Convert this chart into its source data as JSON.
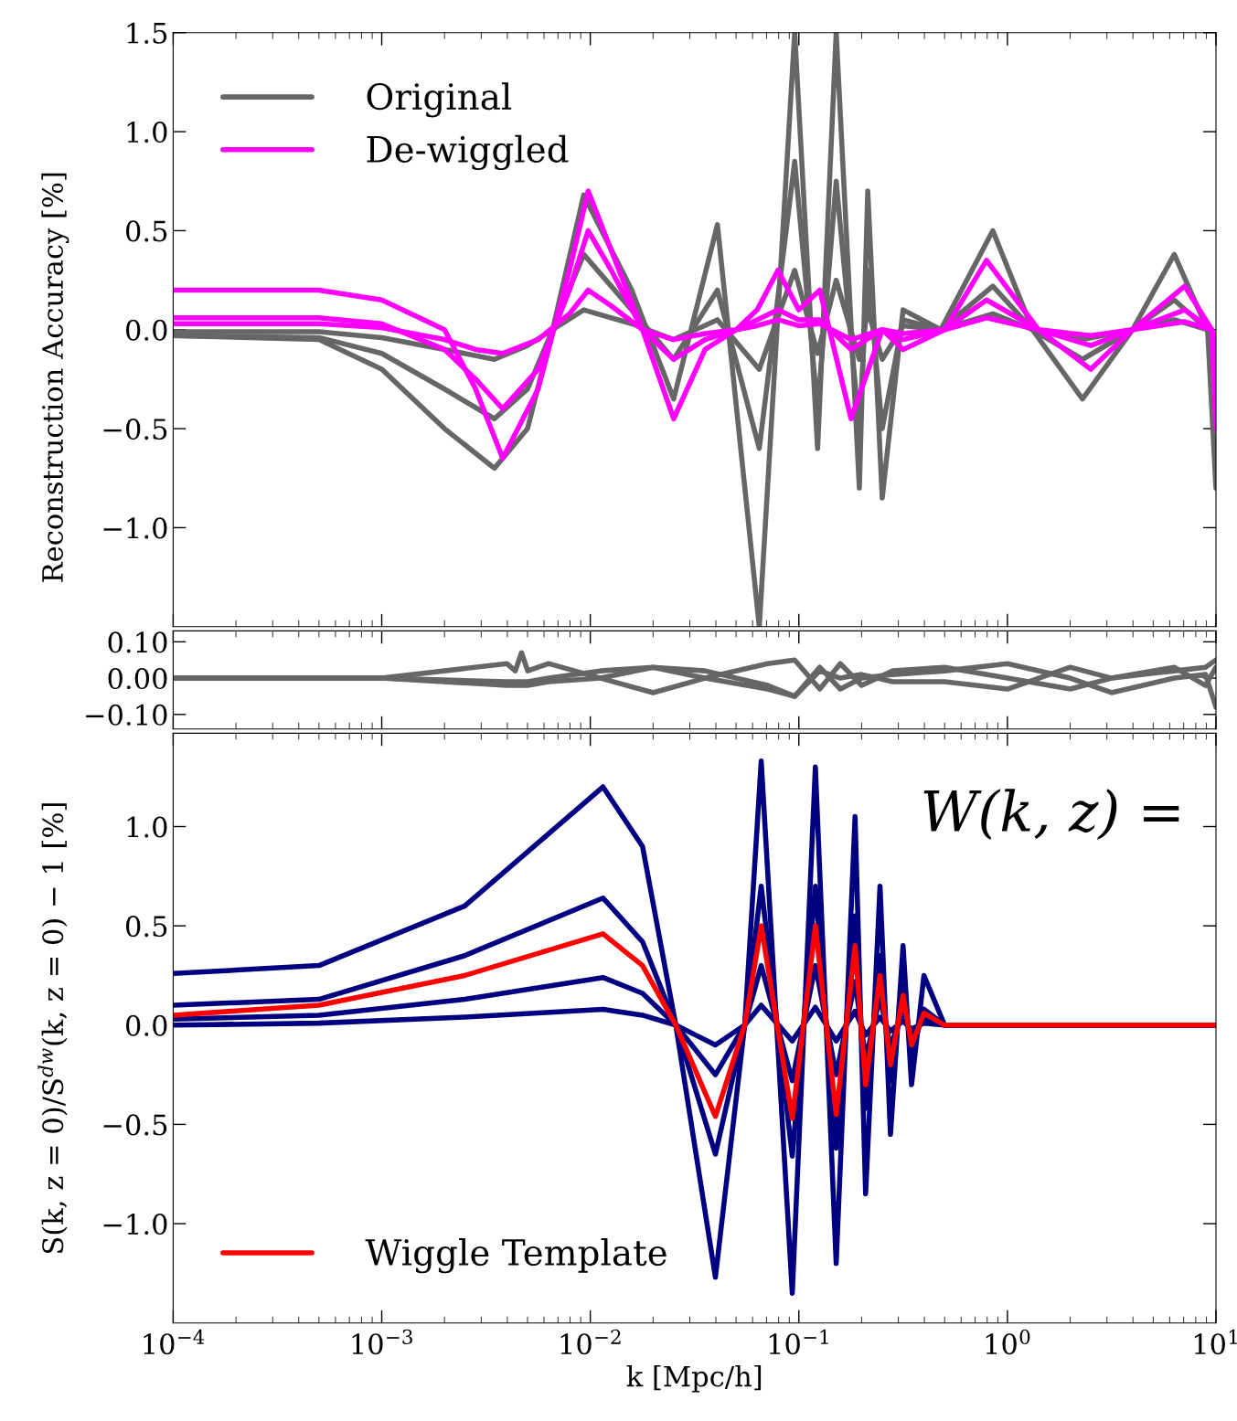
{
  "chart_data": [
    {
      "type": "line",
      "ylabel": "Reconstruction Accuracy [%]",
      "log": "x",
      "xlim": [
        0.0001,
        10
      ],
      "xticks": [
        {
          "value": 0.0001,
          "label": null
        },
        {
          "value": 0.001,
          "label": null
        },
        {
          "value": 0.01,
          "label": null
        },
        {
          "value": 0.1,
          "label": null
        },
        {
          "value": 1,
          "label": null
        },
        {
          "value": 10,
          "label": null
        }
      ],
      "ylim": [
        -1.5,
        1.5
      ],
      "yticks": [
        {
          "value": -1.0,
          "label": "−1.0"
        },
        {
          "value": -0.5,
          "label": "−0.5"
        },
        {
          "value": 0.0,
          "label": "0.0"
        },
        {
          "value": 0.5,
          "label": "0.5"
        },
        {
          "value": 1.0,
          "label": "1.0"
        },
        {
          "value": 1.5,
          "label": "1.5"
        }
      ],
      "tick_labels": "y",
      "grid": false,
      "legend": "top left",
      "line_style": "solid",
      "marker": "none",
      "series": [
        {
          "name": "Original",
          "color": "#666666",
          "x": [
            0.0001,
            0.0005,
            0.001,
            0.002,
            0.00347,
            0.005,
            0.0066,
            0.0093,
            0.0158,
            0.0251,
            0.0407,
            0.0646,
            0.0955,
            0.123,
            0.151,
            0.195,
            0.214,
            0.251,
            0.316,
            0.479,
            0.851,
            1.32,
            2.29,
            3.98,
            6.31,
            9.12,
            10
          ],
          "values": [
            -0.03,
            -0.05,
            -0.2,
            -0.5,
            -0.7,
            -0.5,
            0,
            0.68,
            0.2,
            -0.35,
            0.53,
            -1.5,
            1.5,
            -0.6,
            1.5,
            -0.8,
            0.7,
            -0.85,
            0.1,
            0,
            0.5,
            0,
            -0.35,
            0,
            0.38,
            0,
            -0.8
          ]
        },
        {
          "color": "#666666",
          "x": [
            0.0001,
            0.0005,
            0.001,
            0.002,
            0.00347,
            0.005,
            0.0066,
            0.0093,
            0.0158,
            0.0251,
            0.0407,
            0.0646,
            0.0955,
            0.123,
            0.151,
            0.195,
            0.214,
            0.251,
            0.316,
            0.479,
            0.851,
            1.32,
            2.29,
            3.98,
            6.31,
            9.12,
            10
          ],
          "values": [
            -0.03,
            -0.04,
            -0.12,
            -0.3,
            -0.45,
            -0.3,
            0,
            0.38,
            0.1,
            -0.15,
            0.2,
            -0.6,
            0.85,
            -0.4,
            0.75,
            -0.5,
            0.3,
            -0.5,
            0.05,
            0,
            0.22,
            0,
            -0.15,
            0,
            0.15,
            0,
            -0.3
          ]
        },
        {
          "color": "#666666",
          "x": [
            0.0001,
            0.0005,
            0.001,
            0.002,
            0.00347,
            0.005,
            0.0066,
            0.0093,
            0.0158,
            0.0251,
            0.0407,
            0.0646,
            0.0955,
            0.123,
            0.151,
            0.195,
            0.214,
            0.251,
            0.316,
            0.479,
            0.851,
            1.32,
            2.29,
            3.98,
            6.31,
            9.12,
            10
          ],
          "values": [
            -0.01,
            -0.01,
            -0.04,
            -0.1,
            -0.15,
            -0.08,
            0,
            0.1,
            0.03,
            -0.05,
            0.05,
            -0.2,
            0.3,
            -0.12,
            0.25,
            -0.15,
            0.1,
            -0.15,
            0.02,
            0,
            0.08,
            0,
            -0.05,
            0,
            0.05,
            0,
            -0.1
          ]
        },
        {
          "name": "De-wiggled",
          "color": "#ff00ff",
          "x": [
            0.0001,
            0.0005,
            0.001,
            0.002,
            0.00282,
            0.0038,
            0.00562,
            0.00794,
            0.00977,
            0.0126,
            0.0178,
            0.0251,
            0.0355,
            0.0501,
            0.0631,
            0.0794,
            0.1,
            0.126,
            0.178,
            0.251,
            0.316,
            0.501,
            0.794,
            1.41,
            2.51,
            3.98,
            7.08,
            9.55,
            10
          ],
          "values": [
            0.2,
            0.2,
            0.15,
            0,
            -0.3,
            -0.65,
            -0.3,
            0.3,
            0.7,
            0.4,
            0,
            -0.45,
            -0.1,
            0,
            0.1,
            0.3,
            0.1,
            0.2,
            -0.45,
            0,
            -0.1,
            0,
            0.35,
            0,
            -0.2,
            0,
            0.22,
            0,
            -0.5
          ]
        },
        {
          "color": "#ff00ff",
          "x": [
            0.0001,
            0.0005,
            0.001,
            0.002,
            0.00282,
            0.0038,
            0.00562,
            0.00794,
            0.00977,
            0.0126,
            0.0178,
            0.0251,
            0.0355,
            0.0501,
            0.0631,
            0.0794,
            0.1,
            0.126,
            0.178,
            0.251,
            0.316,
            0.501,
            0.794,
            1.41,
            2.51,
            3.98,
            7.08,
            9.55,
            10
          ],
          "values": [
            0.06,
            0.06,
            0.03,
            -0.1,
            -0.25,
            -0.4,
            -0.2,
            0.2,
            0.5,
            0.3,
            0,
            -0.15,
            -0.05,
            0,
            0.05,
            0.1,
            0.05,
            0.05,
            -0.1,
            0,
            -0.05,
            0,
            0.15,
            0,
            -0.08,
            0,
            0.1,
            0,
            -0.2
          ]
        },
        {
          "color": "#ff00ff",
          "x": [
            0.0001,
            0.0005,
            0.001,
            0.002,
            0.00282,
            0.0038,
            0.00562,
            0.00794,
            0.00977,
            0.0126,
            0.0178,
            0.0251,
            0.0355,
            0.0501,
            0.0631,
            0.0794,
            0.1,
            0.126,
            0.178,
            0.251,
            0.316,
            0.501,
            0.794,
            1.41,
            2.51,
            3.98,
            7.08,
            9.55,
            10
          ],
          "values": [
            0.03,
            0.03,
            0.01,
            -0.05,
            -0.1,
            -0.12,
            -0.05,
            0.08,
            0.2,
            0.12,
            0,
            -0.05,
            -0.02,
            0,
            0.02,
            0.05,
            0.02,
            0.03,
            -0.05,
            0,
            -0.02,
            0,
            0.06,
            0,
            -0.03,
            0,
            0.04,
            0,
            -0.08
          ]
        }
      ]
    },
    {
      "type": "line",
      "log": "x",
      "xlim": [
        0.0001,
        10
      ],
      "xticks": [
        {
          "value": 0.0001,
          "label": null
        },
        {
          "value": 0.001,
          "label": null
        },
        {
          "value": 0.01,
          "label": null
        },
        {
          "value": 0.1,
          "label": null
        },
        {
          "value": 1,
          "label": null
        },
        {
          "value": 10,
          "label": null
        }
      ],
      "ylim": [
        -0.14,
        0.13
      ],
      "yticks": [
        {
          "value": -0.1,
          "label": "−0.10"
        },
        {
          "value": 0.0,
          "label": "0.00"
        },
        {
          "value": 0.1,
          "label": "0.10"
        }
      ],
      "tick_labels": "y",
      "grid": false,
      "line_style": "solid",
      "marker": "none",
      "series": [
        {
          "color": "#666666",
          "x": [
            0.0001,
            0.001,
            0.00398,
            0.00437,
            0.00468,
            0.00501,
            0.00631,
            0.0112,
            0.02,
            0.0355,
            0.0708,
            0.0955,
            0.126,
            0.158,
            0.2,
            0.282,
            0.501,
            1,
            2,
            3.16,
            6.31,
            8.91,
            10
          ],
          "values": [
            0,
            0,
            0.04,
            0.02,
            0.07,
            0.02,
            0.04,
            0,
            -0.04,
            0,
            0.04,
            0.05,
            -0.03,
            0.04,
            -0.02,
            0.02,
            0.03,
            0,
            -0.03,
            0,
            0.03,
            -0.02,
            0.03
          ]
        },
        {
          "color": "#666666",
          "x": [
            0.0001,
            0.001,
            0.00398,
            0.00437,
            0.00468,
            0.00501,
            0.00631,
            0.0112,
            0.02,
            0.0355,
            0.0708,
            0.0955,
            0.126,
            0.158,
            0.2,
            0.282,
            0.501,
            1,
            2,
            3.16,
            6.31,
            8.91,
            10
          ],
          "values": [
            0,
            0,
            -0.01,
            -0.01,
            -0.01,
            -0.01,
            0,
            0.02,
            0.03,
            0,
            -0.03,
            -0.05,
            0.03,
            -0.03,
            0,
            0.01,
            0.02,
            0.04,
            0,
            -0.04,
            0,
            0.01,
            -0.08
          ]
        },
        {
          "color": "#666666",
          "x": [
            0.0001,
            0.001,
            0.00398,
            0.00437,
            0.00468,
            0.00501,
            0.00631,
            0.0112,
            0.02,
            0.0355,
            0.0708,
            0.0955,
            0.126,
            0.158,
            0.2,
            0.282,
            0.501,
            1,
            2,
            3.16,
            6.31,
            8.91,
            10
          ],
          "values": [
            0,
            0,
            -0.02,
            -0.02,
            -0.02,
            -0.02,
            -0.01,
            0,
            0.03,
            0.02,
            -0.02,
            -0.05,
            0.02,
            0,
            0.01,
            -0.01,
            -0.01,
            -0.03,
            0.03,
            0,
            0.02,
            0.03,
            0.05
          ]
        }
      ]
    },
    {
      "type": "line",
      "xlabel": "k [Mpc/h]",
      "ylabel": "S(k, z = 0)/S$^{dw}$(k, z = 0) − 1 [%]",
      "annotations": [
        "W(k, z) ="
      ],
      "log": "x",
      "xlim": [
        0.0001,
        10
      ],
      "xticks": [
        {
          "value": 0.0001,
          "label": "10$^{−4}$"
        },
        {
          "value": 0.001,
          "label": "10$^{−3}$"
        },
        {
          "value": 0.01,
          "label": "10$^{−2}$"
        },
        {
          "value": 0.1,
          "label": "10$^{−1}$"
        },
        {
          "value": 1,
          "label": "10$^{0}$"
        },
        {
          "value": 10,
          "label": "10$^{1}$"
        }
      ],
      "ylim": [
        -1.5,
        1.47
      ],
      "yticks": [
        {
          "value": -1.0,
          "label": "−1.0"
        },
        {
          "value": -0.5,
          "label": "−0.5"
        },
        {
          "value": 0.0,
          "label": "0.0"
        },
        {
          "value": 0.5,
          "label": "0.5"
        },
        {
          "value": 1.0,
          "label": "1.0"
        }
      ],
      "grid": false,
      "legend": "bottom left",
      "line_style": "solid",
      "marker": "none",
      "series": [
        {
          "color": "#000080",
          "x": [
            0.0001,
            0.0005,
            0.0025,
            0.0115,
            0.0178,
            0.0257,
            0.0398,
            0.055,
            0.066,
            0.093,
            0.12,
            0.151,
            0.186,
            0.209,
            0.245,
            0.275,
            0.316,
            0.347,
            0.398,
            0.5,
            10
          ],
          "values": [
            0.26,
            0.3,
            0.6,
            1.2,
            0.9,
            0,
            -1.27,
            0,
            1.33,
            -1.35,
            1.3,
            -1.2,
            1.05,
            -0.85,
            0.7,
            -0.55,
            0.4,
            -0.3,
            0.25,
            0,
            0
          ]
        },
        {
          "color": "#000080",
          "x": [
            0.0001,
            0.0005,
            0.0025,
            0.0115,
            0.0178,
            0.0257,
            0.0398,
            0.055,
            0.066,
            0.093,
            0.12,
            0.151,
            0.186,
            0.209,
            0.245,
            0.275,
            0.316,
            0.347,
            0.398,
            0.5,
            10
          ],
          "values": [
            0.1,
            0.13,
            0.35,
            0.64,
            0.42,
            0,
            -0.65,
            0,
            0.7,
            -0.66,
            0.7,
            -0.62,
            0.55,
            -0.42,
            0.35,
            -0.28,
            0.2,
            -0.14,
            0.08,
            0,
            0
          ]
        },
        {
          "color": "#000080",
          "x": [
            0.0001,
            0.0005,
            0.0025,
            0.0115,
            0.0178,
            0.0257,
            0.0398,
            0.055,
            0.066,
            0.093,
            0.12,
            0.151,
            0.186,
            0.209,
            0.245,
            0.275,
            0.316,
            0.347,
            0.398,
            0.5,
            10
          ],
          "values": [
            0.03,
            0.05,
            0.13,
            0.24,
            0.16,
            0,
            -0.25,
            0,
            0.3,
            -0.28,
            0.3,
            -0.25,
            0.22,
            -0.17,
            0.14,
            -0.11,
            0.08,
            -0.06,
            0.03,
            0,
            0
          ]
        },
        {
          "color": "#000080",
          "x": [
            0.0001,
            0.0005,
            0.0025,
            0.0115,
            0.0178,
            0.0257,
            0.0398,
            0.055,
            0.066,
            0.093,
            0.12,
            0.151,
            0.186,
            0.209,
            0.245,
            0.275,
            0.316,
            0.347,
            0.398,
            0.5,
            10
          ],
          "values": [
            0.0,
            0.01,
            0.04,
            0.08,
            0.05,
            0,
            -0.1,
            0,
            0.1,
            -0.08,
            0.09,
            -0.08,
            0.07,
            -0.05,
            0.04,
            -0.03,
            0.02,
            -0.02,
            0.01,
            0,
            0
          ]
        },
        {
          "name": "Wiggle Template",
          "color": "#ff0000",
          "x": [
            0.0001,
            0.0005,
            0.0025,
            0.0115,
            0.0178,
            0.0257,
            0.0398,
            0.055,
            0.066,
            0.093,
            0.12,
            0.151,
            0.186,
            0.209,
            0.245,
            0.275,
            0.316,
            0.347,
            0.398,
            0.5,
            10
          ],
          "values": [
            0.05,
            0.1,
            0.25,
            0.46,
            0.3,
            0,
            -0.46,
            0,
            0.5,
            -0.47,
            0.5,
            -0.45,
            0.4,
            -0.3,
            0.25,
            -0.2,
            0.15,
            -0.1,
            0.06,
            0,
            0
          ]
        }
      ]
    }
  ]
}
